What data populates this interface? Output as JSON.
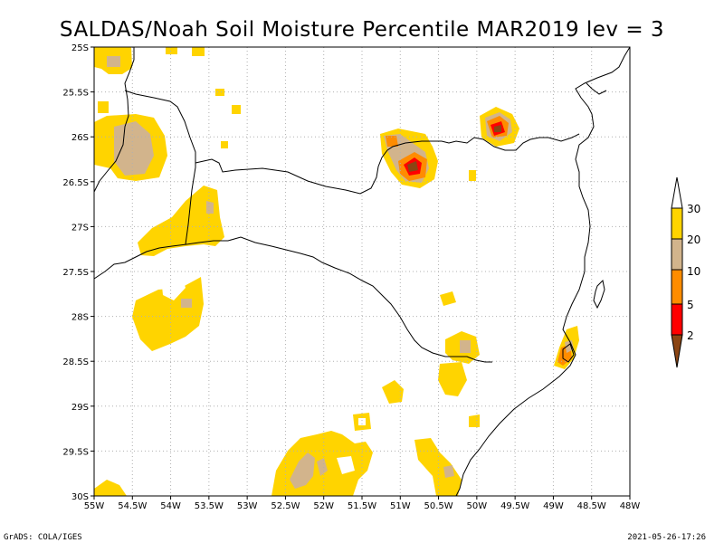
{
  "title": "SALDAS/Noah Soil Moisture Percentile MAR2019 lev = 3",
  "footer_left": "GrADS: COLA/IGES",
  "footer_right": "2021-05-26-17:26",
  "map": {
    "lon_range": [
      -55,
      -48
    ],
    "lat_range": [
      -30,
      -25
    ],
    "lon_labels": [
      "55W",
      "54.5W",
      "54W",
      "53.5W",
      "53W",
      "52.5W",
      "52W",
      "51.5W",
      "51W",
      "50.5W",
      "50W",
      "49.5W",
      "49W",
      "48.5W",
      "48W"
    ],
    "lat_labels": [
      "25S",
      "25.5S",
      "26S",
      "26.5S",
      "27S",
      "27.5S",
      "28S",
      "28.5S",
      "29S",
      "29.5S",
      "30S"
    ],
    "grid": true
  },
  "colorbar": {
    "labels": [
      "30",
      "20",
      "10",
      "5",
      "2"
    ],
    "colors": [
      "#ffd400",
      "#d2b48c",
      "#ff8c00",
      "#ff0000",
      "#8b4513"
    ]
  },
  "colors": {
    "p30": "#ffd400",
    "p20": "#d2b48c",
    "p10": "#ff8c00",
    "p5": "#ff0000",
    "p2": "#8b4513",
    "boundary": "#000000",
    "grid": "#b0b0b0"
  }
}
